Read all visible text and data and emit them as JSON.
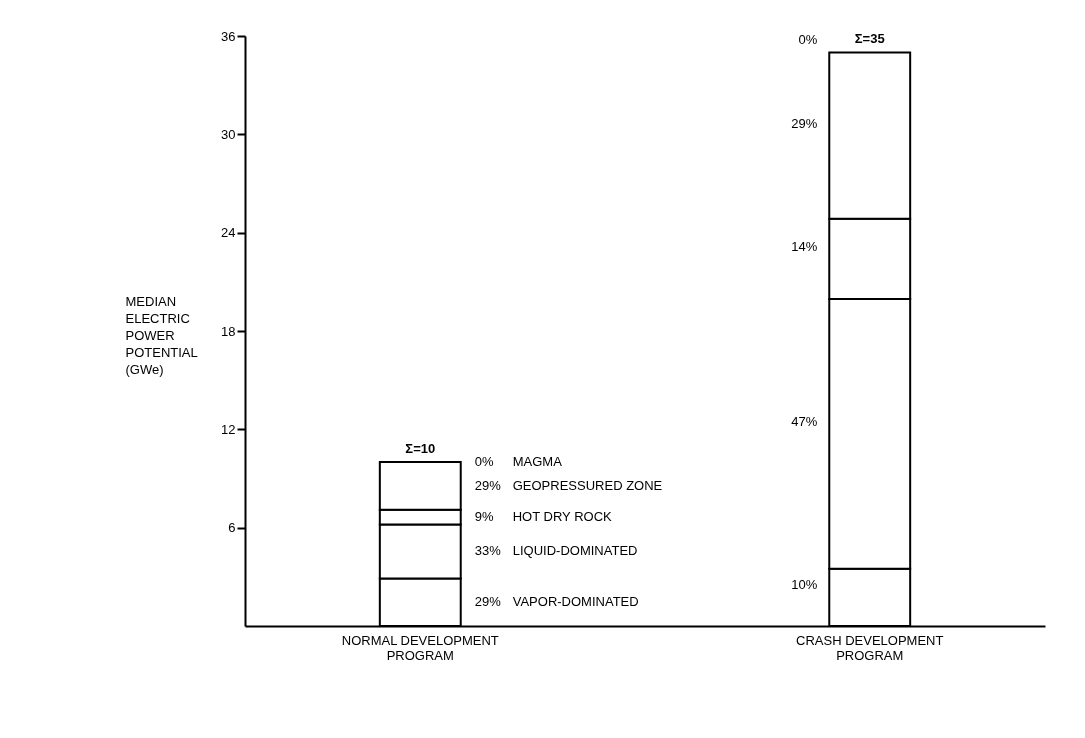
{
  "chart_data": {
    "type": "bar",
    "stacked": true,
    "categories": [
      "NORMAL DEVELOPMENT PROGRAM",
      "CRASH DEVELOPMENT PROGRAM"
    ],
    "ylabel": "MEDIAN ELECTRIC POWER POTENTIAL (GWe)",
    "ylim": [
      0,
      36
    ],
    "yticks": [
      6,
      12,
      18,
      24,
      30,
      36
    ],
    "grid": false,
    "legend": false,
    "totals": [
      "Σ=10",
      "Σ=35"
    ],
    "series": [
      {
        "color": "#ffffff",
        "values": [
          2.9,
          3.5
        ]
      },
      {
        "color": "#ffffff",
        "values": [
          3.3,
          16.45
        ]
      },
      {
        "color": "#ffffff",
        "values": [
          0.9,
          4.9
        ]
      },
      {
        "color": "#ffffff",
        "values": [
          2.9,
          10.15
        ]
      },
      {
        "color": "#ffffff",
        "values": [
          0,
          0
        ]
      }
    ],
    "annotations": [
      "29%",
      "33%",
      "9%",
      "29%",
      "0%",
      "10%",
      "47%",
      "14%",
      "29%",
      "0%",
      "VAPOR-DOMINATED",
      "LIQUID-DOMINATED",
      "HOT DRY ROCK",
      "GEOPRESSURED ZONE",
      "MAGMA"
    ]
  }
}
